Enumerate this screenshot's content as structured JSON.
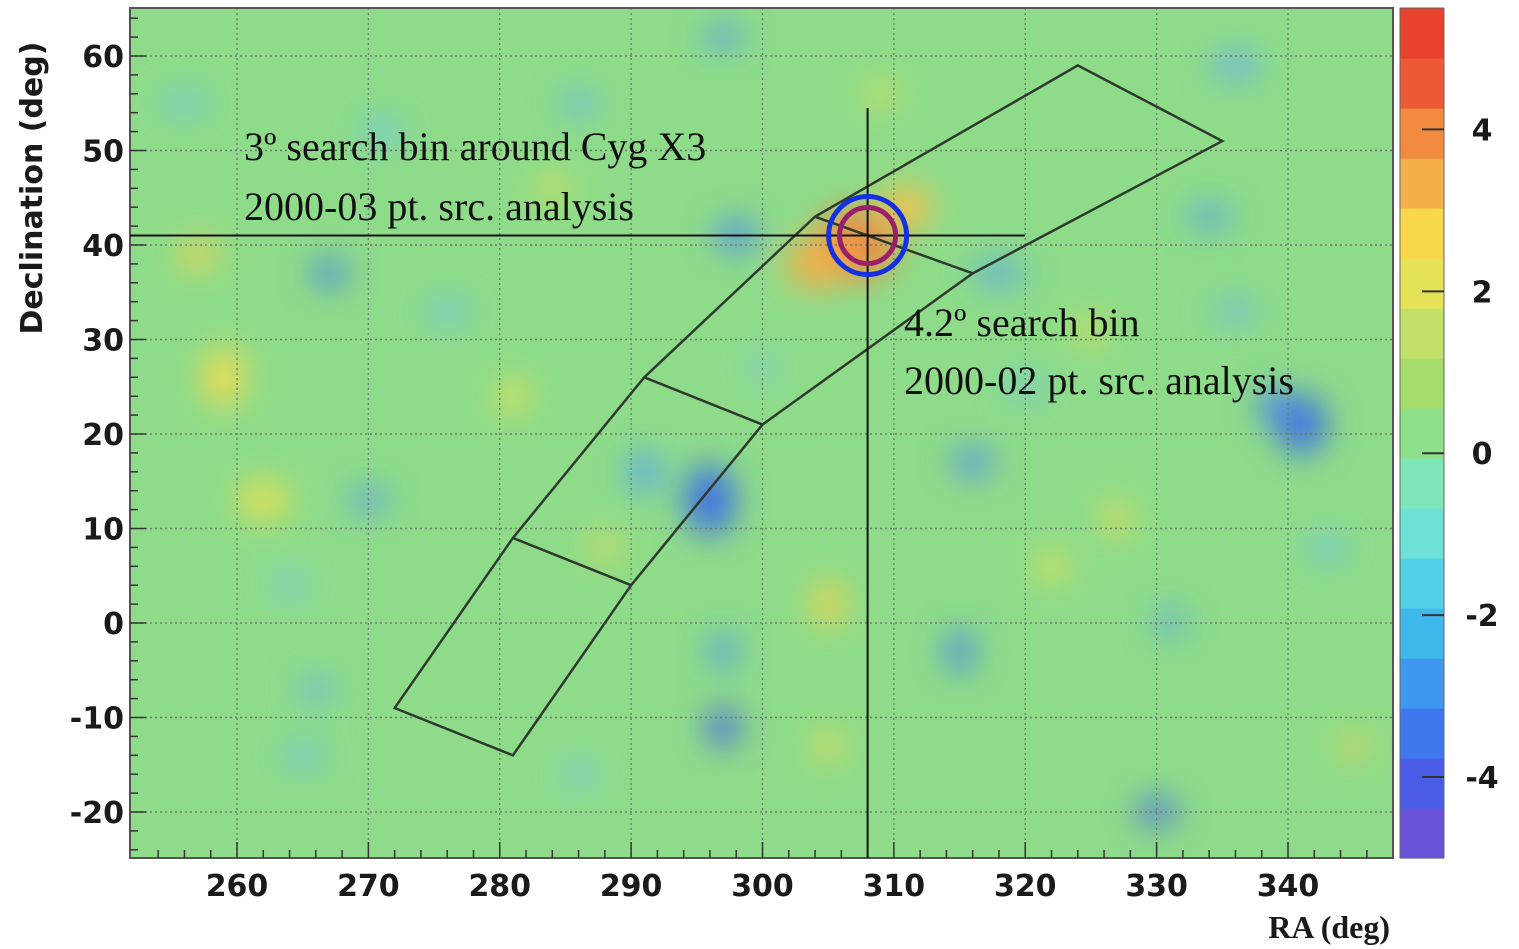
{
  "chart_data": {
    "type": "heatmap",
    "xlabel": "RA (deg)",
    "ylabel": "Declination (deg)",
    "xlim": [
      252,
      348
    ],
    "ylim": [
      -25,
      66
    ],
    "x_ticks": [
      260,
      270,
      280,
      290,
      300,
      310,
      320,
      330,
      340
    ],
    "x_tick_labels": [
      "260",
      "270",
      "280",
      "290",
      "300",
      "310",
      "320",
      "330",
      "340"
    ],
    "y_ticks": [
      -20,
      -10,
      0,
      10,
      20,
      30,
      40,
      50,
      60
    ],
    "y_tick_labels": [
      "-20",
      "-10",
      "0",
      "10",
      "20",
      "30",
      "40",
      "50",
      "60"
    ],
    "grid": true,
    "colorbar": {
      "range": [
        -5,
        5.5
      ],
      "ticks": [
        -4,
        -2,
        0,
        2,
        4
      ],
      "tick_labels": [
        "-4",
        "-2",
        "0",
        "2",
        "4"
      ],
      "colors": [
        "#6a52d8",
        "#4a5ce6",
        "#3f78ec",
        "#3d98ee",
        "#3fb8ec",
        "#52d2e8",
        "#6ee0d6",
        "#7ee6b8",
        "#8ee08a",
        "#a6dc6c",
        "#c2e06a",
        "#e6e258",
        "#f8d848",
        "#f6b04a",
        "#f28a40",
        "#ee5a36",
        "#e8422e"
      ]
    },
    "hotspot": {
      "ra": 308,
      "dec": 41
    },
    "features": {
      "crosshair": {
        "ra": 308,
        "dec": 41
      },
      "galactic_band": {
        "outline": [
          [
            272,
            -9
          ],
          [
            281,
            9
          ],
          [
            291,
            26
          ],
          [
            304,
            43
          ],
          [
            324,
            59
          ],
          [
            335,
            51
          ],
          [
            316,
            37
          ],
          [
            300,
            21
          ],
          [
            290,
            4
          ],
          [
            281,
            -14
          ]
        ],
        "dividers": [
          [
            [
              281,
              9
            ],
            [
              290,
              4
            ]
          ],
          [
            [
              291,
              26
            ],
            [
              300,
              21
            ]
          ],
          [
            [
              304,
              43
            ],
            [
              316,
              37
            ]
          ]
        ]
      }
    },
    "annotations": [
      {
        "lines": [
          "3º search bin around Cyg X3",
          "2000-03 pt. src. analysis"
        ]
      },
      {
        "lines": [
          "4.2º search bin",
          "2000-02 pt. src. analysis"
        ]
      }
    ],
    "circle_colors": {
      "outer": "#1530e0",
      "inner": "#9a1f6a"
    }
  }
}
